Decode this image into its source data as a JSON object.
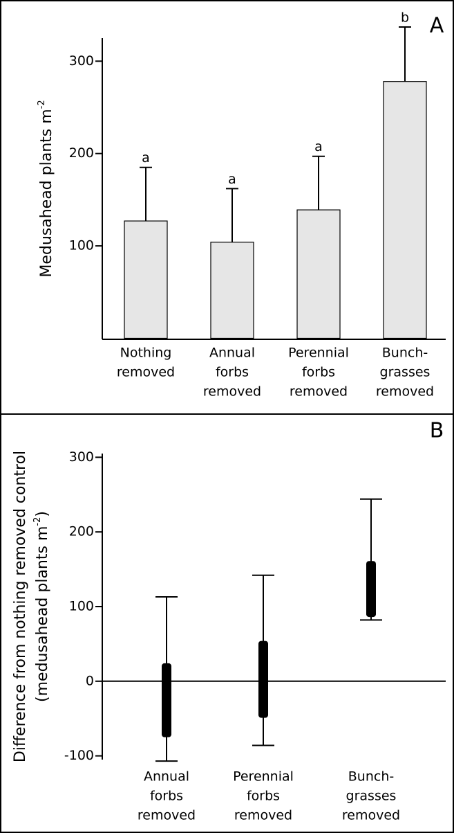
{
  "chart_data": [
    {
      "type": "bar",
      "panel": "A",
      "ylabel": [
        "Medusahead plants m",
        "-2"
      ],
      "categories": [
        [
          "Nothing",
          "removed"
        ],
        [
          "Annual",
          "forbs",
          "removed"
        ],
        [
          "Perennial",
          "forbs",
          "removed"
        ],
        [
          "Bunch-",
          "grasses",
          "removed"
        ]
      ],
      "values": [
        127,
        104,
        139,
        278
      ],
      "errors": [
        58,
        58,
        58,
        59
      ],
      "letters": [
        "a",
        "a",
        "a",
        "b"
      ],
      "color": "#e6e6e6",
      "ylim": [
        0,
        325
      ],
      "yticks": [
        100,
        200,
        300
      ]
    },
    {
      "type": "interval",
      "panel": "B",
      "ylabel": [
        "Difference from nothing removed control",
        "(medusahead plants m",
        "-2",
        ")"
      ],
      "categories": [
        [
          "Annual",
          "forbs",
          "removed"
        ],
        [
          "Perennial",
          "forbs",
          "removed"
        ],
        [
          "Bunch-",
          "grasses",
          "removed"
        ]
      ],
      "whisker_low": [
        -107,
        -86,
        82
      ],
      "whisker_high": [
        113,
        142,
        244
      ],
      "box_low": [
        -75,
        -49,
        86
      ],
      "box_high": [
        24,
        54,
        161
      ],
      "color": "#000000",
      "ylim": [
        -105,
        305
      ],
      "yticks": [
        -100,
        0,
        100,
        200,
        300
      ]
    }
  ]
}
